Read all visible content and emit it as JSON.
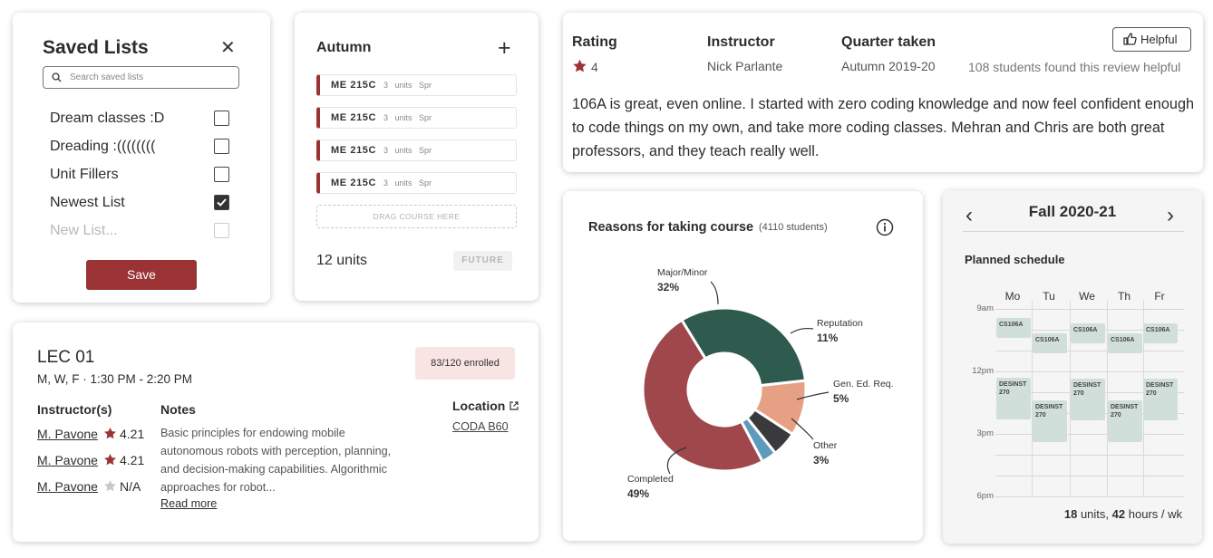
{
  "saved_lists": {
    "title": "Saved Lists",
    "search_placeholder": "Search saved lists",
    "items": [
      {
        "label": "Dream classes :D",
        "checked": false
      },
      {
        "label": "Dreading :((((((((",
        "checked": false
      },
      {
        "label": "Unit Fillers",
        "checked": false
      },
      {
        "label": "Newest List",
        "checked": true
      }
    ],
    "new_list_placeholder": "New List...",
    "save_label": "Save"
  },
  "term_card": {
    "title": "Autumn",
    "courses": [
      {
        "code": "ME 215C",
        "units": "3 units",
        "term": "Spr"
      },
      {
        "code": "ME 215C",
        "units": "3 units",
        "term": "Spr"
      },
      {
        "code": "ME 215C",
        "units": "3 units",
        "term": "Spr"
      },
      {
        "code": "ME 215C",
        "units": "3 units",
        "term": "Spr"
      }
    ],
    "drag_hint": "DRAG COURSE HERE",
    "units_total": "12 units",
    "future_label": "FUTURE"
  },
  "review": {
    "rating_header": "Rating",
    "rating_value": "4",
    "instructor_header": "Instructor",
    "instructor_value": "Nick Parlante",
    "quarter_header": "Quarter taken",
    "quarter_value": "Autumn 2019-20",
    "helpful_label": "Helpful",
    "found_helpful": "108 students found this review helpful",
    "body": "106A is great, even online. I started with zero coding knowledge and now feel confident enough to code things on my own, and take more coding classes. Mehran and Chris are both great professors, and they teach really well."
  },
  "section": {
    "title": "LEC 01",
    "time": "M, W, F · 1:30 PM - 2:20 PM",
    "enrolled": "83/120 enrolled",
    "instructors_header": "Instructor(s)",
    "instructors": [
      {
        "name": "M. Pavone",
        "rating": "4.21",
        "rated": true
      },
      {
        "name": "M. Pavone",
        "rating": "4.21",
        "rated": true
      },
      {
        "name": "M. Pavone",
        "rating": "N/A",
        "rated": false
      }
    ],
    "notes_header": "Notes",
    "notes": "Basic principles for endowing mobile autonomous robots with perception, planning, and decision-making capabilities. Algorithmic approaches for robot...",
    "read_more": "Read more",
    "location_header": "Location",
    "location_value": "CODA B60"
  },
  "reasons": {
    "title": "Reasons for taking course",
    "count": "(4110 students)",
    "chart_data": {
      "type": "pie",
      "categories": [
        "Major/Minor",
        "Reputation",
        "Gen. Ed. Req.",
        "Other",
        "Completed"
      ],
      "values": [
        32,
        11,
        5,
        3,
        49
      ],
      "labels": [
        "32%",
        "11%",
        "5%",
        "3%",
        "49%"
      ],
      "colors": [
        "#2f5b4f",
        "#e6a185",
        "#3a3a3c",
        "#5e9abb",
        "#a0474c"
      ]
    }
  },
  "schedule": {
    "season": "Fall 2020-21",
    "planned_label": "Planned schedule",
    "days": [
      "Mo",
      "Tu",
      "We",
      "Th",
      "Fr"
    ],
    "time_labels": [
      "9am",
      "12pm",
      "3pm",
      "6pm"
    ],
    "blocks": [
      {
        "label": "CS106A"
      },
      {
        "label": "CS106A"
      },
      {
        "label": "CS106A"
      },
      {
        "label": "CS106A"
      },
      {
        "label": "CS106A"
      },
      {
        "label": "DESINST 270"
      },
      {
        "label": "DESINST 270"
      },
      {
        "label": "DESINST 270"
      },
      {
        "label": "DESINST 270"
      },
      {
        "label": "DESINST 270"
      }
    ],
    "summary_units": "18",
    "summary_units_label": "units,",
    "summary_hours": "42",
    "summary_hours_label": "hours / wk"
  }
}
